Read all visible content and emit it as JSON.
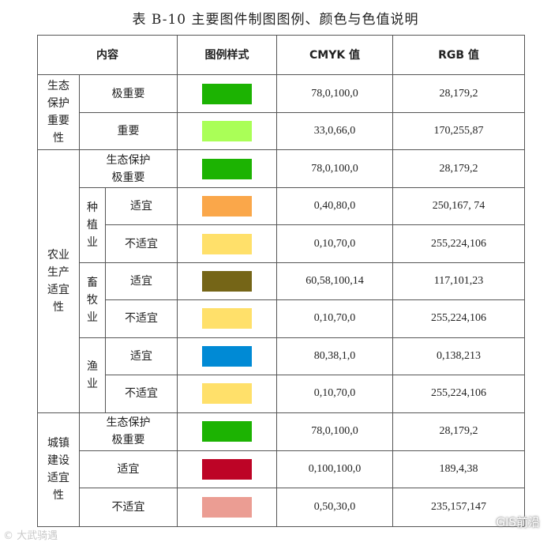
{
  "title": "表 B-10 主要图件制图图例、颜色与色值说明",
  "header": {
    "content": "内容",
    "legend_style": "图例样式",
    "cmyk": "CMYK 值",
    "rgb": "RGB 值"
  },
  "groups": {
    "eco": {
      "label": "生态\n保护\n重要\n性",
      "rows": [
        {
          "label": "极重要",
          "color": "#1cb302",
          "cmyk": "78,0,100,0",
          "rgb": "28,179,2"
        },
        {
          "label": "重要",
          "color": "#aaff57",
          "cmyk": "33,0,66,0",
          "rgb": "170,255,87"
        }
      ]
    },
    "agri": {
      "label": "农业\n生产\n适宜\n性",
      "eco_row": {
        "label": "生态保护\n极重要",
        "color": "#1cb302",
        "cmyk": "78,0,100,0",
        "rgb": "28,179,2"
      },
      "planting": {
        "label": "种\n植\n业",
        "rows": [
          {
            "label": "适宜",
            "color": "#faa74a",
            "cmyk": "0,40,80,0",
            "rgb": "250,167, 74"
          },
          {
            "label": "不适宜",
            "color": "#ffe06a",
            "cmyk": "0,10,70,0",
            "rgb": "255,224,106"
          }
        ]
      },
      "livestock": {
        "label": "畜\n牧\n业",
        "rows": [
          {
            "label": "适宜",
            "color": "#756517",
            "cmyk": "60,58,100,14",
            "rgb": "117,101,23"
          },
          {
            "label": "不适宜",
            "color": "#ffe06a",
            "cmyk": "0,10,70,0",
            "rgb": "255,224,106"
          }
        ]
      },
      "fishery": {
        "label": "渔\n业",
        "rows": [
          {
            "label": "适宜",
            "color": "#008ad5",
            "cmyk": "80,38,1,0",
            "rgb": "0,138,213"
          },
          {
            "label": "不适宜",
            "color": "#ffe06a",
            "cmyk": "0,10,70,0",
            "rgb": "255,224,106"
          }
        ]
      }
    },
    "urban": {
      "label": "城镇\n建设\n适宜\n性",
      "rows": [
        {
          "label": "生态保护\n极重要",
          "color": "#1cb302",
          "cmyk": "78,0,100,0",
          "rgb": "28,179,2"
        },
        {
          "label": "适宜",
          "color": "#bd0426",
          "cmyk": "0,100,100,0",
          "rgb": "189,4,38"
        },
        {
          "label": "不适宜",
          "color": "#eb9d93",
          "cmyk": "0,50,30,0",
          "rgb": "235,157,147"
        }
      ]
    }
  },
  "watermarks": {
    "left": "© 大武骑遇",
    "right": "GIS前沿"
  }
}
